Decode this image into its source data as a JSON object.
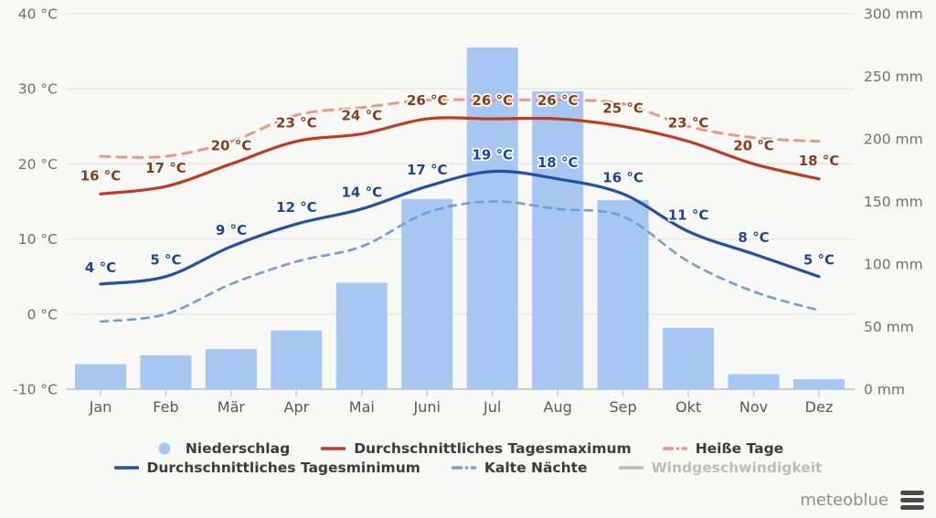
{
  "chart_data": {
    "type": "bar+line climate chart",
    "categories": [
      "Jan",
      "Feb",
      "Mär",
      "Apr",
      "Mai",
      "Juni",
      "Jul",
      "Aug",
      "Sep",
      "Okt",
      "Nov",
      "Dez"
    ],
    "left_axis": {
      "unit": "°C",
      "min": -10,
      "max": 40,
      "ticks": [
        {
          "value": 40,
          "label": "40 °C"
        },
        {
          "value": 30,
          "label": "30 °C"
        },
        {
          "value": 20,
          "label": "20 °C"
        },
        {
          "value": 10,
          "label": "10 °C"
        },
        {
          "value": 0,
          "label": "0 °C"
        },
        {
          "value": -10,
          "label": "-10 °C"
        }
      ]
    },
    "right_axis": {
      "unit": "mm",
      "min": 0,
      "max": 300,
      "ticks": [
        {
          "value": 300,
          "label": "300 mm"
        },
        {
          "value": 250,
          "label": "250 mm"
        },
        {
          "value": 200,
          "label": "200 mm"
        },
        {
          "value": 150,
          "label": "150 mm"
        },
        {
          "value": 100,
          "label": "100 mm"
        },
        {
          "value": 50,
          "label": "50 mm"
        },
        {
          "value": 0,
          "label": "0 mm"
        }
      ]
    },
    "series": [
      {
        "id": "niederschlag",
        "name": "Niederschlag",
        "type": "bar",
        "axis": "right",
        "unit": "mm",
        "color": "#a7c6f2",
        "values": [
          20,
          27,
          32,
          47,
          85,
          152,
          273,
          238,
          151,
          49,
          12,
          8
        ]
      },
      {
        "id": "tagesmaximum",
        "name": "Durchschnittliches Tagesmaximum",
        "type": "line",
        "axis": "left",
        "unit": "°C",
        "color": "#bf3a1e",
        "label_color": "#8c3c14",
        "dashed": false,
        "values": [
          16,
          17,
          20,
          23,
          24,
          26,
          26,
          26,
          25,
          23,
          20,
          18
        ],
        "point_labels": [
          "16 °C",
          "17 °C",
          "20 °C",
          "23 °C",
          "24 °C",
          "26 °C",
          "26 °C",
          "26 °C",
          "25 °C",
          "23 °C",
          "20 °C",
          "18 °C"
        ]
      },
      {
        "id": "tagesminimum",
        "name": "Durchschnittliches Tagesminimum",
        "type": "line",
        "axis": "left",
        "unit": "°C",
        "color": "#2050a8",
        "label_color": "#1a46a0",
        "dashed": false,
        "values": [
          4,
          5,
          9,
          12,
          14,
          17,
          19,
          18,
          16,
          11,
          8,
          5
        ],
        "point_labels": [
          "4 °C",
          "5 °C",
          "9 °C",
          "12 °C",
          "14 °C",
          "17 °C",
          "19 °C",
          "18 °C",
          "16 °C",
          "11 °C",
          "8 °C",
          "5 °C"
        ]
      },
      {
        "id": "heisse-tage",
        "name": "Heiße Tage",
        "type": "line",
        "axis": "left",
        "unit": "°C",
        "color": "#ee9682",
        "dashed": true,
        "values": [
          21,
          21,
          23,
          26.5,
          27.5,
          28.5,
          28.5,
          28.5,
          28,
          25,
          23.5,
          23
        ],
        "point_labels": []
      },
      {
        "id": "kalte-naechte",
        "name": "Kalte Nächte",
        "type": "line",
        "axis": "left",
        "unit": "°C",
        "color": "#6f9dd4",
        "dashed": true,
        "values": [
          -1,
          0,
          4,
          7,
          9,
          13.5,
          15,
          14,
          13,
          7,
          3,
          0.5
        ],
        "point_labels": []
      },
      {
        "id": "windgeschwindigkeit",
        "name": "Windgeschwindigkeit",
        "type": "line",
        "axis": "left",
        "color": "#b9b9b9",
        "dashed": false,
        "disabled": true,
        "values": []
      }
    ],
    "grid": true,
    "legend_position": "bottom"
  },
  "legend": {
    "rows": [
      [
        {
          "id": "niederschlag",
          "label": "Niederschlag",
          "marker": "circle",
          "color": "#a7c6f2",
          "disabled": false
        },
        {
          "id": "tagesmaximum",
          "label": "Durchschnittliches Tagesmaximum",
          "marker": "line",
          "color": "#bf3a1e",
          "disabled": false
        },
        {
          "id": "heisse-tage",
          "label": "Heiße Tage",
          "marker": "dashed-line",
          "color": "#ee9682",
          "disabled": false
        }
      ],
      [
        {
          "id": "tagesminimum",
          "label": "Durchschnittliches Tagesminimum",
          "marker": "line",
          "color": "#2050a8",
          "disabled": false
        },
        {
          "id": "kalte-naechte",
          "label": "Kalte Nächte",
          "marker": "dashed-line",
          "color": "#6f9dd4",
          "disabled": false
        },
        {
          "id": "windgeschwindigkeit",
          "label": "Windgeschwindigkeit",
          "marker": "line",
          "color": "#b9b9b9",
          "disabled": true
        }
      ]
    ]
  },
  "footer": {
    "brand": "meteoblue",
    "menu_icon": "hamburger-icon"
  },
  "colors": {
    "background": "#f8f8f7",
    "gridline": "#e3e3e2",
    "baseline": "#cccccc",
    "axis_text": "#6f6f6f",
    "month_text": "#595959",
    "legend_text": "#3b3b3b",
    "legend_text_disabled": "#bcbcbc",
    "brand_text": "#8f8f8f",
    "menu_icon": "#4a4a4a"
  }
}
